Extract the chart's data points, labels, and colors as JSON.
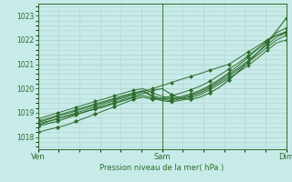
{
  "background_color": "#c8eae8",
  "grid_color": "#b0d4cc",
  "line_color": "#2d6e2d",
  "marker_color": "#2d6e2d",
  "xlabel": "Pression niveau de la mer( hPa )",
  "xtick_labels": [
    "Ven",
    "Sam",
    "Dim"
  ],
  "xtick_positions": [
    0.0,
    1.0,
    2.0
  ],
  "ylim": [
    1017.5,
    1023.5
  ],
  "yticks": [
    1018,
    1019,
    1020,
    1021,
    1022,
    1023
  ],
  "figsize": [
    3.2,
    2.0
  ],
  "dpi": 100,
  "series": [
    [
      1018.5,
      1018.62,
      1018.75,
      1018.88,
      1019.0,
      1019.12,
      1019.25,
      1019.38,
      1019.5,
      1019.62,
      1019.75,
      1019.88,
      1020.0,
      1020.12,
      1020.25,
      1020.38,
      1020.5,
      1020.62,
      1020.75,
      1020.88,
      1021.0,
      1021.25,
      1021.5,
      1021.75,
      1022.0,
      1022.2,
      1022.3
    ],
    [
      1018.2,
      1018.3,
      1018.4,
      1018.5,
      1018.65,
      1018.8,
      1018.95,
      1019.1,
      1019.25,
      1019.4,
      1019.55,
      1019.65,
      1019.55,
      1019.6,
      1019.7,
      1019.82,
      1019.95,
      1020.1,
      1020.3,
      1020.55,
      1020.8,
      1021.05,
      1021.35,
      1021.65,
      1021.95,
      1022.2,
      1022.35
    ],
    [
      1018.55,
      1018.65,
      1018.75,
      1018.85,
      1018.95,
      1019.05,
      1019.15,
      1019.25,
      1019.38,
      1019.5,
      1019.62,
      1019.72,
      1019.6,
      1019.5,
      1019.45,
      1019.52,
      1019.62,
      1019.75,
      1019.95,
      1020.18,
      1020.42,
      1020.68,
      1020.95,
      1021.25,
      1021.58,
      1021.88,
      1022.0
    ],
    [
      1018.6,
      1018.72,
      1018.84,
      1018.96,
      1019.08,
      1019.2,
      1019.32,
      1019.44,
      1019.55,
      1019.67,
      1019.78,
      1019.88,
      1019.65,
      1019.55,
      1019.5,
      1019.58,
      1019.68,
      1019.82,
      1020.02,
      1020.25,
      1020.5,
      1020.78,
      1021.08,
      1021.38,
      1021.7,
      1022.0,
      1022.2
    ],
    [
      1018.65,
      1018.77,
      1018.89,
      1019.01,
      1019.13,
      1019.25,
      1019.37,
      1019.48,
      1019.6,
      1019.72,
      1019.82,
      1019.92,
      1019.7,
      1019.6,
      1019.55,
      1019.62,
      1019.73,
      1019.88,
      1020.08,
      1020.32,
      1020.58,
      1020.85,
      1021.15,
      1021.48,
      1021.8,
      1022.12,
      1022.3
    ],
    [
      1018.75,
      1018.87,
      1018.99,
      1019.11,
      1019.23,
      1019.35,
      1019.47,
      1019.58,
      1019.7,
      1019.82,
      1019.93,
      1020.0,
      1019.82,
      1019.68,
      1019.6,
      1019.67,
      1019.78,
      1019.93,
      1020.13,
      1020.38,
      1020.65,
      1020.95,
      1021.28,
      1021.62,
      1021.98,
      1022.3,
      1022.5
    ],
    [
      1018.45,
      1018.55,
      1018.65,
      1018.78,
      1018.92,
      1019.05,
      1019.18,
      1019.3,
      1019.42,
      1019.55,
      1019.67,
      1019.8,
      1019.92,
      1020.0,
      1019.75,
      1019.58,
      1019.55,
      1019.65,
      1019.82,
      1020.05,
      1020.35,
      1020.7,
      1021.08,
      1021.48,
      1021.9,
      1022.38,
      1022.9
    ]
  ],
  "n_points": 27,
  "vline_x": [
    0.0,
    1.0,
    2.0
  ]
}
